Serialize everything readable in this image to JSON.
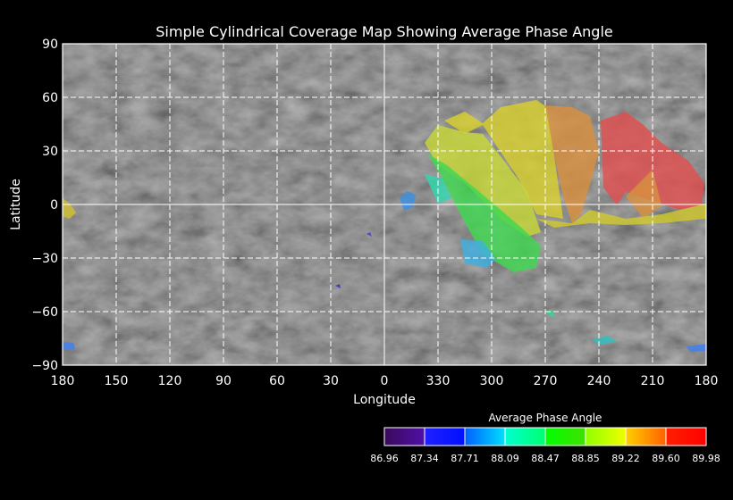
{
  "title": "Simple Cylindrical Coverage Map Showing Average Phase Angle",
  "x_axis": {
    "label": "Longitude",
    "ticks": [
      "180",
      "150",
      "120",
      "90",
      "60",
      "30",
      "0",
      "330",
      "300",
      "270",
      "240",
      "210",
      "180"
    ]
  },
  "y_axis": {
    "label": "Latitude",
    "ticks": [
      "90",
      "60",
      "30",
      "0",
      "−30",
      "−60",
      "−90"
    ]
  },
  "colorbar": {
    "title": "Average Phase Angle",
    "ticks": [
      "86.96",
      "87.34",
      "87.71",
      "88.09",
      "88.47",
      "88.85",
      "89.22",
      "89.60",
      "89.98"
    ],
    "segments": [
      [
        "#3a0a5a",
        "#5010a8"
      ],
      [
        "#2020ff",
        "#0010ff"
      ],
      [
        "#0060ff",
        "#00e0ff"
      ],
      [
        "#00ffd0",
        "#00ff70"
      ],
      [
        "#00ff00",
        "#40e000"
      ],
      [
        "#90ff00",
        "#f0ff00"
      ],
      [
        "#ffd000",
        "#ff6000"
      ],
      [
        "#ff2000",
        "#ff0000"
      ]
    ]
  },
  "colors": {
    "background": "#000000",
    "grid": "#ffffff",
    "basemap": "#5a5a5a"
  }
}
